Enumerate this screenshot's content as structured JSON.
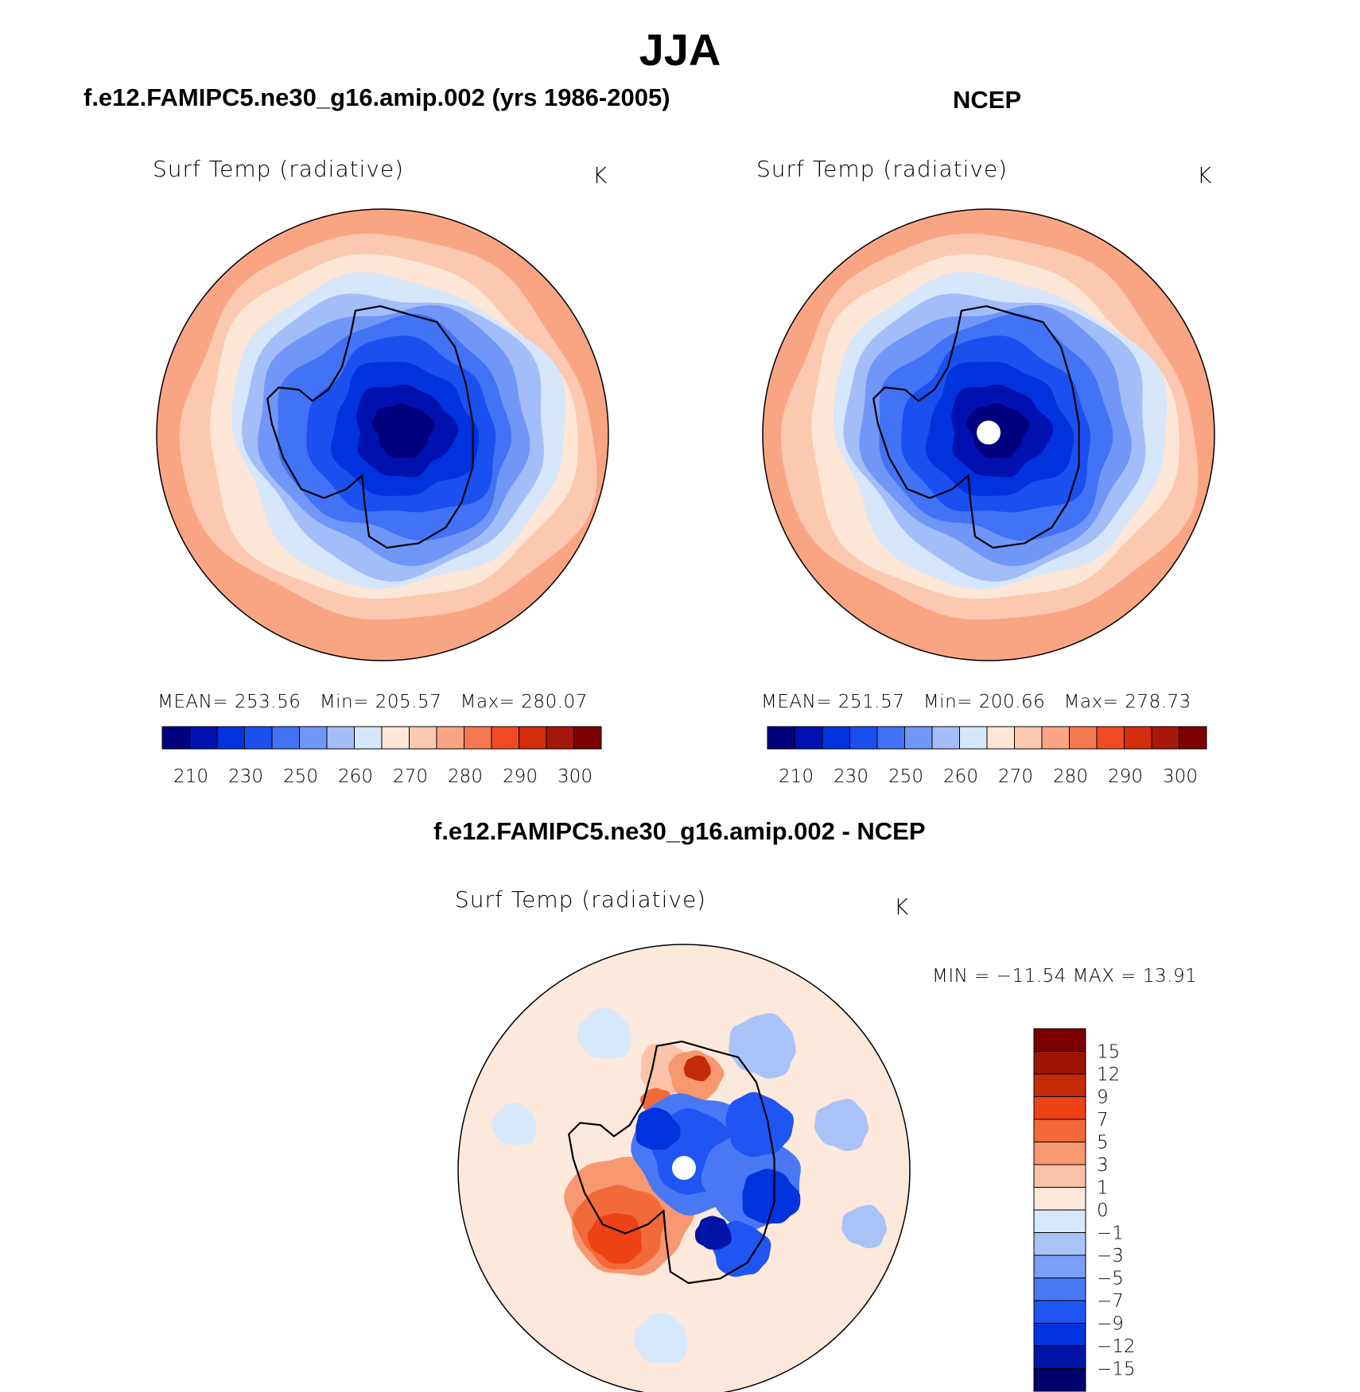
{
  "figure_title": "JJA",
  "panels": {
    "model": {
      "title": "f.e12.FAMIPC5.ne30_g16.amip.002 (yrs 1986-2005)",
      "variable": "Surf Temp (radiative)",
      "units": "K",
      "mean_label": "MEAN=",
      "mean": "253.56",
      "min_label": "Min=",
      "min": "205.57",
      "max_label": "Max=",
      "max": "280.07"
    },
    "obs": {
      "title": "NCEP",
      "variable": "Surf Temp (radiative)",
      "units": "K",
      "mean_label": "MEAN=",
      "mean": "251.57",
      "min_label": "Min=",
      "min": "200.66",
      "max_label": "Max=",
      "max": "278.73"
    },
    "diff": {
      "title": "f.e12.FAMIPC5.ne30_g16.amip.002 - NCEP",
      "variable": "Surf Temp (radiative)",
      "units": "K",
      "minmax_text": "MIN = −11.54  MAX =   13.91"
    }
  },
  "colors": {
    "abs_scale": [
      "#00007f",
      "#0011b0",
      "#0033dd",
      "#1a50f0",
      "#4272f5",
      "#7096f7",
      "#a3bdf8",
      "#d6e6fb",
      "#fde6d6",
      "#fcc8b0",
      "#f9a584",
      "#f6784f",
      "#f24a24",
      "#d52c0b",
      "#a8170b",
      "#7d0000"
    ],
    "diff_scale": [
      "#00006e",
      "#0014a8",
      "#0033dd",
      "#1f55f2",
      "#4a78f5",
      "#7b9ef7",
      "#a9c3f9",
      "#d6e8fb",
      "#fde8dc",
      "#fbc3a8",
      "#f79870",
      "#f36a3a",
      "#ee4114",
      "#c42b07",
      "#9e1404",
      "#7d0000"
    ],
    "pole_hole": "#ffffff"
  },
  "chart_data": [
    {
      "type": "heatmap",
      "projection": "south-polar-stereographic",
      "title": "f.e12.FAMIPC5.ne30_g16.amip.002 (yrs 1986-2005)",
      "variable": "Surf Temp (radiative)",
      "units": "K",
      "stats": {
        "mean": 253.56,
        "min": 205.57,
        "max": 280.07
      },
      "contour_levels": [
        205,
        210,
        220,
        230,
        240,
        250,
        255,
        260,
        265,
        270,
        275,
        280,
        285,
        290,
        295,
        300
      ],
      "colorbar_tick_labels": [
        "210",
        "230",
        "250",
        "260",
        "270",
        "280",
        "290",
        "300"
      ],
      "colorbar_orientation": "horizontal"
    },
    {
      "type": "heatmap",
      "projection": "south-polar-stereographic",
      "title": "NCEP",
      "variable": "Surf Temp (radiative)",
      "units": "K",
      "stats": {
        "mean": 251.57,
        "min": 200.66,
        "max": 278.73
      },
      "contour_levels": [
        205,
        210,
        220,
        230,
        240,
        250,
        255,
        260,
        265,
        270,
        275,
        280,
        285,
        290,
        295,
        300
      ],
      "colorbar_tick_labels": [
        "210",
        "230",
        "250",
        "260",
        "270",
        "280",
        "290",
        "300"
      ],
      "colorbar_orientation": "horizontal"
    },
    {
      "type": "heatmap",
      "projection": "south-polar-stereographic",
      "title": "f.e12.FAMIPC5.ne30_g16.amip.002 - NCEP",
      "variable": "Surf Temp (radiative)",
      "units": "K",
      "stats": {
        "min": -11.54,
        "max": 13.91
      },
      "contour_levels": [
        -15,
        -12,
        -9,
        -7,
        -5,
        -3,
        -1,
        0,
        1,
        3,
        5,
        7,
        9,
        12,
        15
      ],
      "colorbar_tick_labels": [
        "15",
        "12",
        "9",
        "7",
        "5",
        "3",
        "1",
        "0",
        "−1",
        "−3",
        "−5",
        "−7",
        "−9",
        "−12",
        "−15"
      ],
      "colorbar_orientation": "vertical"
    }
  ]
}
